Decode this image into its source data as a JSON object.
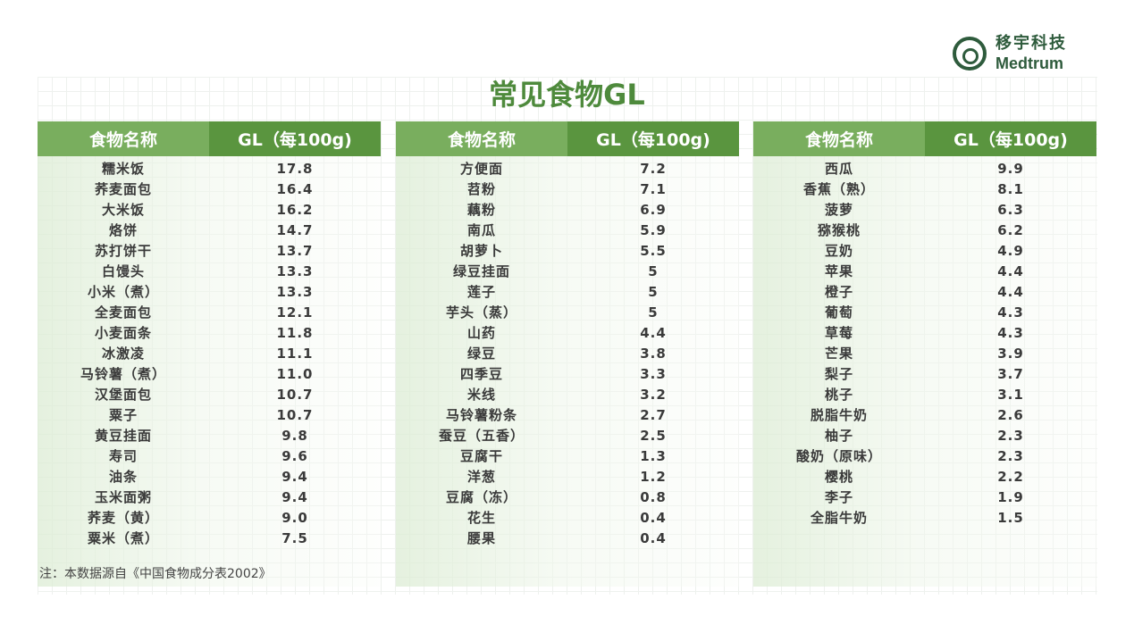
{
  "brand": {
    "cn": "移宇科技",
    "en": "Medtrum"
  },
  "title": "常见食物GL",
  "tables": [
    {
      "header_name": "食物名称",
      "header_value": "GL（每100g)",
      "rows": [
        {
          "name": "糯米饭",
          "gl": "17.8"
        },
        {
          "name": "荞麦面包",
          "gl": "16.4"
        },
        {
          "name": "大米饭",
          "gl": "16.2"
        },
        {
          "name": "烙饼",
          "gl": "14.7"
        },
        {
          "name": "苏打饼干",
          "gl": "13.7"
        },
        {
          "name": "白馒头",
          "gl": "13.3"
        },
        {
          "name": "小米（煮）",
          "gl": "13.3"
        },
        {
          "name": "全麦面包",
          "gl": "12.1"
        },
        {
          "name": "小麦面条",
          "gl": "11.8"
        },
        {
          "name": "冰激凌",
          "gl": "11.1"
        },
        {
          "name": "马铃薯（煮）",
          "gl": "11.0"
        },
        {
          "name": "汉堡面包",
          "gl": "10.7"
        },
        {
          "name": "粟子",
          "gl": "10.7"
        },
        {
          "name": "黄豆挂面",
          "gl": "9.8"
        },
        {
          "name": "寿司",
          "gl": "9.6"
        },
        {
          "name": "油条",
          "gl": "9.4"
        },
        {
          "name": "玉米面粥",
          "gl": "9.4"
        },
        {
          "name": "荞麦（黄）",
          "gl": "9.0"
        },
        {
          "name": "粟米（煮）",
          "gl": "7.5"
        }
      ]
    },
    {
      "header_name": "食物名称",
      "header_value": "GL（每100g)",
      "rows": [
        {
          "name": "方便面",
          "gl": "7.2"
        },
        {
          "name": "苕粉",
          "gl": "7.1"
        },
        {
          "name": "藕粉",
          "gl": "6.9"
        },
        {
          "name": "南瓜",
          "gl": "5.9"
        },
        {
          "name": "胡萝卜",
          "gl": "5.5"
        },
        {
          "name": "绿豆挂面",
          "gl": "5"
        },
        {
          "name": "莲子",
          "gl": "5"
        },
        {
          "name": "芋头（蒸）",
          "gl": "5"
        },
        {
          "name": "山药",
          "gl": "4.4"
        },
        {
          "name": "绿豆",
          "gl": "3.8"
        },
        {
          "name": "四季豆",
          "gl": "3.3"
        },
        {
          "name": "米线",
          "gl": "3.2"
        },
        {
          "name": "马铃薯粉条",
          "gl": "2.7"
        },
        {
          "name": "蚕豆（五香）",
          "gl": "2.5"
        },
        {
          "name": "豆腐干",
          "gl": "1.3"
        },
        {
          "name": "洋葱",
          "gl": "1.2"
        },
        {
          "name": "豆腐（冻）",
          "gl": "0.8"
        },
        {
          "name": "花生",
          "gl": "0.4"
        },
        {
          "name": "腰果",
          "gl": "0.4"
        }
      ]
    },
    {
      "header_name": "食物名称",
      "header_value": "GL（每100g)",
      "rows": [
        {
          "name": "西瓜",
          "gl": "9.9"
        },
        {
          "name": "香蕉（熟）",
          "gl": "8.1"
        },
        {
          "name": "菠萝",
          "gl": "6.3"
        },
        {
          "name": "猕猴桃",
          "gl": "6.2"
        },
        {
          "name": "豆奶",
          "gl": "4.9"
        },
        {
          "name": "苹果",
          "gl": "4.4"
        },
        {
          "name": "橙子",
          "gl": "4.4"
        },
        {
          "name": "葡萄",
          "gl": "4.3"
        },
        {
          "name": "草莓",
          "gl": "4.3"
        },
        {
          "name": "芒果",
          "gl": "3.9"
        },
        {
          "name": "梨子",
          "gl": "3.7"
        },
        {
          "name": "桃子",
          "gl": "3.1"
        },
        {
          "name": "脱脂牛奶",
          "gl": "2.6"
        },
        {
          "name": "柚子",
          "gl": "2.3"
        },
        {
          "name": "酸奶（原味）",
          "gl": "2.3"
        },
        {
          "name": "樱桃",
          "gl": "2.2"
        },
        {
          "name": "李子",
          "gl": "1.9"
        },
        {
          "name": "全脂牛奶",
          "gl": "1.5"
        }
      ]
    }
  ],
  "note": "注：本数据源自《中国食物成分表2002》"
}
